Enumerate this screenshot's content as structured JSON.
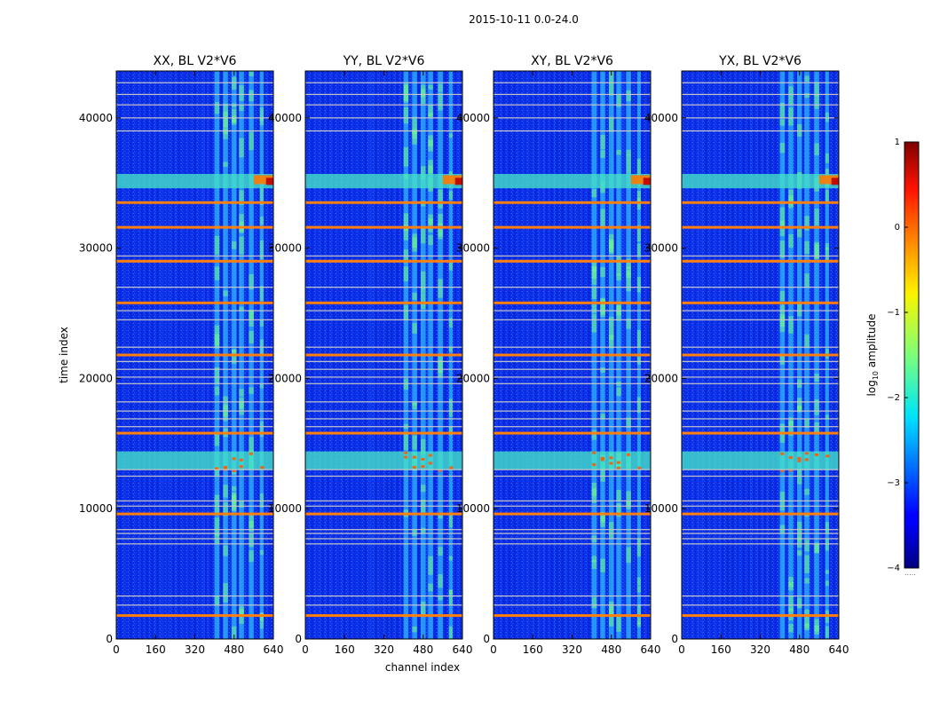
{
  "figure": {
    "suptitle": "2015-10-11 0.0-24.0",
    "xlabel": "channel index",
    "ylabel": "time index"
  },
  "chart_data": {
    "type": "heatmap",
    "colormap": "jet",
    "panels": [
      {
        "title": "XX, BL V2*V6",
        "polarization": "XX"
      },
      {
        "title": "YY, BL V2*V6",
        "polarization": "YY"
      },
      {
        "title": "XY, BL V2*V6",
        "polarization": "XY"
      },
      {
        "title": "YX, BL V2*V6",
        "polarization": "YX"
      }
    ],
    "x": {
      "label": "channel index",
      "range": [
        0,
        640
      ],
      "ticks": [
        0,
        160,
        320,
        480,
        640
      ],
      "tick_labels": [
        "0",
        "160",
        "320",
        "480",
        "640"
      ]
    },
    "y": {
      "label": "time index",
      "range": [
        0,
        43600
      ],
      "ticks": [
        0,
        10000,
        20000,
        30000,
        40000
      ],
      "tick_labels": [
        "0",
        "10000",
        "20000",
        "30000",
        "40000"
      ]
    },
    "colorbar": {
      "label_main": "log",
      "label_sub": "10",
      "label_rest": " amplitude",
      "range": [
        -4,
        1
      ],
      "ticks": [
        -4,
        -3,
        -2,
        -1,
        0,
        1
      ],
      "tick_labels": [
        "−4",
        "−3",
        "−2",
        "−1",
        "0",
        "1"
      ],
      "footer": "....."
    },
    "flagged_rows": [
      1800,
      2600,
      3300,
      7300,
      7700,
      8100,
      8400,
      9600,
      10200,
      10600,
      12500,
      13000,
      15800,
      16300,
      16900,
      17500,
      18200,
      19600,
      20100,
      20700,
      21300,
      21800,
      22400,
      24500,
      25200,
      25800,
      27000,
      29000,
      29400,
      31600,
      33500,
      39000,
      40000,
      41000,
      41800,
      42700
    ],
    "bright_rows": [
      1800,
      9600,
      15800,
      21800,
      25800,
      29000,
      31600,
      33500
    ],
    "rfi_channel_bands": [
      [
        400,
        420
      ],
      [
        435,
        455
      ],
      [
        470,
        490
      ],
      [
        500,
        520
      ],
      [
        540,
        560
      ],
      [
        585,
        600
      ]
    ],
    "bright_time_bands": [
      [
        13000,
        14400
      ],
      [
        34600,
        35700
      ]
    ]
  }
}
